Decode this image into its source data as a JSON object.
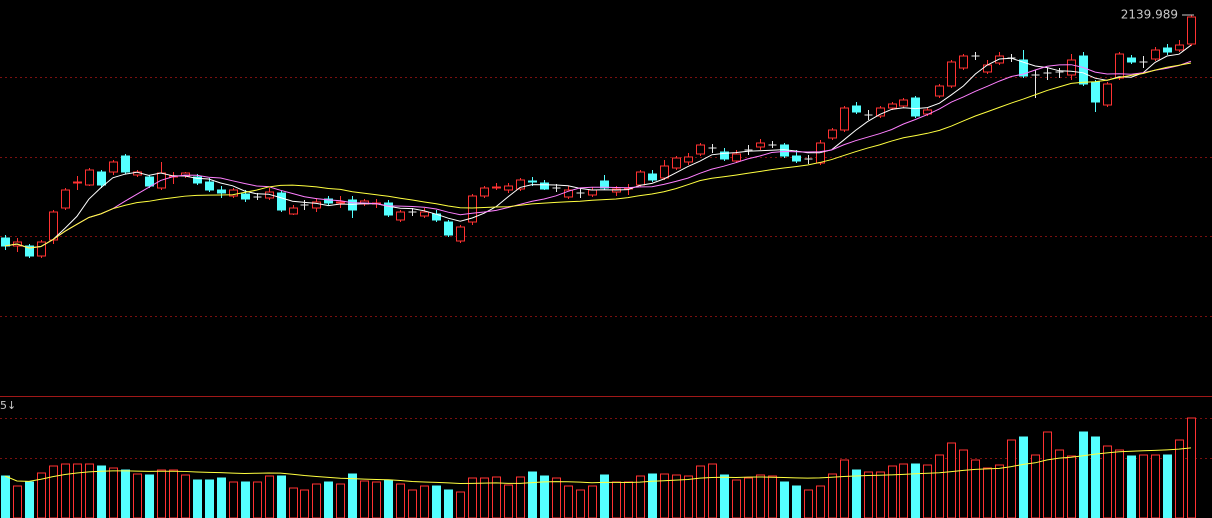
{
  "chart_data": {
    "type": "candlestick",
    "open": [
      1917,
      1909,
      1909,
      1899,
      1915,
      1947,
      1972,
      1970,
      1983,
      1983,
      1999,
      1980,
      1978,
      1967,
      1978,
      1979,
      1978,
      1973,
      1965,
      1959,
      1961,
      1958,
      1957,
      1962,
      1941,
      1950,
      1947,
      1956,
      1952,
      1955,
      1951,
      1951,
      1952,
      1935,
      1943,
      1939,
      1941,
      1933,
      1914,
      1933,
      1959,
      1967,
      1965,
      1966,
      1974,
      1972,
      1967,
      1958,
      1962,
      1960,
      1974,
      1963,
      1966,
      1970,
      1981,
      1977,
      1987,
      1993,
      2001,
      2007,
      2003,
      1994,
      2005,
      2008,
      2010,
      2010,
      1999,
      1996,
      1992,
      2017,
      2025,
      2049,
      2040,
      2039,
      2047,
      2049,
      2057,
      2041,
      2059,
      2069,
      2087,
      2099,
      2083,
      2092,
      2097,
      2095,
      2080,
      2082,
      2083,
      2080,
      2099,
      2073,
      2050,
      2077,
      2097,
      2093,
      2096,
      2107,
      2105,
      2111
    ],
    "close": [
      1909,
      1913,
      1899,
      1913,
      1943,
      1965,
      1973,
      1985,
      1970,
      1993,
      1983,
      1983,
      1969,
      1982,
      1979,
      1982,
      1972,
      1965,
      1962,
      1965,
      1956,
      1958,
      1963,
      1945,
      1947,
      1950,
      1953,
      1952,
      1953,
      1945,
      1954,
      1952,
      1940,
      1943,
      1943,
      1943,
      1935,
      1920,
      1928,
      1959,
      1967,
      1968,
      1969,
      1975,
      1973,
      1966,
      1967,
      1965,
      1962,
      1965,
      1967,
      1966,
      1967,
      1983,
      1975,
      1989,
      1997,
      1998,
      2010,
      2007,
      1996,
      2001,
      2005,
      2012,
      2010,
      1999,
      1994,
      1996,
      2012,
      2025,
      2047,
      2043,
      2040,
      2047,
      2051,
      2055,
      2039,
      2045,
      2069,
      2093,
      2099,
      2099,
      2090,
      2099,
      2097,
      2079,
      2080,
      2082,
      2083,
      2095,
      2071,
      2053,
      2071,
      2101,
      2093,
      2093,
      2105,
      2103,
      2110,
      2138
    ],
    "high": [
      1920,
      1917,
      1911,
      1915,
      1945,
      1967,
      1979,
      1987,
      1985,
      1995,
      2001,
      1985,
      1980,
      1993,
      1983,
      1983,
      1981,
      1977,
      1969,
      1967,
      1965,
      1962,
      1967,
      1964,
      1950,
      1955,
      1957,
      1959,
      1959,
      1959,
      1956,
      1956,
      1955,
      1945,
      1947,
      1947,
      1945,
      1935,
      1930,
      1961,
      1969,
      1972,
      1972,
      1977,
      1978,
      1975,
      1971,
      1969,
      1967,
      1968,
      1980,
      1969,
      1971,
      1985,
      1985,
      1995,
      1999,
      2002,
      2012,
      2011,
      2007,
      2005,
      2010,
      2016,
      2014,
      2012,
      2005,
      2000,
      2015,
      2027,
      2049,
      2053,
      2045,
      2049,
      2053,
      2057,
      2059,
      2047,
      2071,
      2095,
      2101,
      2103,
      2095,
      2103,
      2101,
      2105,
      2085,
      2087,
      2087,
      2101,
      2103,
      2075,
      2073,
      2103,
      2100,
      2099,
      2108,
      2111,
      2115,
      2139.989
    ],
    "low": [
      1905,
      1903,
      1897,
      1897,
      1911,
      1945,
      1965,
      1969,
      1967,
      1980,
      1981,
      1978,
      1967,
      1965,
      1971,
      1977,
      1970,
      1963,
      1957,
      1957,
      1953,
      1955,
      1955,
      1943,
      1940,
      1945,
      1943,
      1950,
      1947,
      1937,
      1949,
      1947,
      1938,
      1933,
      1939,
      1937,
      1933,
      1918,
      1912,
      1930,
      1957,
      1965,
      1962,
      1964,
      1969,
      1965,
      1963,
      1956,
      1957,
      1958,
      1965,
      1959,
      1960,
      1968,
      1973,
      1975,
      1985,
      1990,
      1999,
      2002,
      1994,
      1992,
      2000,
      2005,
      2007,
      1997,
      1992,
      1991,
      1990,
      2015,
      2023,
      2041,
      2035,
      2037,
      2045,
      2047,
      2037,
      2039,
      2057,
      2067,
      2085,
      2095,
      2081,
      2090,
      2093,
      2077,
      2057,
      2075,
      2077,
      2075,
      2069,
      2043,
      2048,
      2075,
      2091,
      2087,
      2094,
      2100,
      2103,
      2109
    ],
    "volume": [
      42,
      32,
      36,
      45,
      52,
      54,
      54,
      54,
      52,
      50,
      48,
      44,
      43,
      48,
      48,
      43,
      38,
      38,
      40,
      36,
      36,
      36,
      42,
      42,
      30,
      28,
      34,
      36,
      34,
      44,
      37,
      36,
      38,
      34,
      28,
      32,
      32,
      28,
      26,
      40,
      40,
      41,
      33,
      41,
      46,
      42,
      40,
      32,
      28,
      32,
      43,
      36,
      36,
      42,
      44,
      44,
      43,
      42,
      52,
      54,
      43,
      38,
      40,
      43,
      42,
      36,
      32,
      28,
      32,
      44,
      58,
      48,
      46,
      46,
      52,
      54,
      54,
      53,
      63,
      75,
      68,
      58,
      50,
      53,
      78,
      81,
      63,
      86,
      68,
      62,
      86,
      81,
      72,
      68,
      62,
      63,
      63,
      63,
      78,
      100
    ],
    "volume_label": "5↓",
    "ylim": [
      1759,
      2155
    ],
    "vlim": [
      0,
      120
    ],
    "up_color": "#ff3232",
    "down_color": "#54ffff",
    "flat_color": "#e8e8e8",
    "moving_averages": [
      {
        "period": 5,
        "color": "#ffffff"
      },
      {
        "period": 10,
        "color": "#ff7fff"
      },
      {
        "period": 20,
        "color": "#ffff40"
      }
    ],
    "volume_ma": {
      "period": 20,
      "color": "#ffff40"
    }
  }
}
